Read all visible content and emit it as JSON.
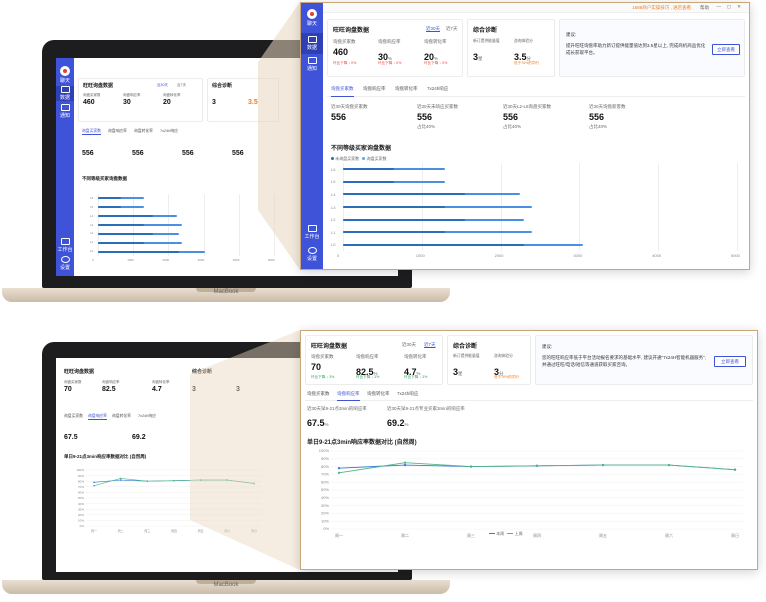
{
  "app": {
    "sidebar": {
      "items": [
        {
          "label": "聊天",
          "icon": "chat-logo-icon"
        },
        {
          "label": "数据",
          "icon": "data-icon"
        },
        {
          "label": "通知",
          "icon": "mail-icon"
        }
      ],
      "bottom": [
        {
          "label": "工作台",
          "icon": "monitor-icon"
        },
        {
          "label": "设置",
          "icon": "settings-icon"
        }
      ]
    },
    "topbar": {
      "text": "1688商户实操技巧 , 进店查看",
      "help": "帮助"
    }
  },
  "top_panel": {
    "card1": {
      "title": "旺旺询盘数据",
      "ranges": [
        "近30天",
        "近7天"
      ],
      "metrics": [
        {
          "label": "询盘买家数",
          "value": "460",
          "delta": "环比下降 ↓ 0%"
        },
        {
          "label": "询盘响应率",
          "value": "30",
          "unit": "%",
          "delta": "环比下降 ↓ 0%"
        },
        {
          "label": "询盘转化率",
          "value": "20",
          "unit": "%",
          "delta": "环比下降 ↓ 0%"
        }
      ]
    },
    "card2": {
      "title": "综合诊断",
      "metrics": [
        {
          "label": "新订提供能量值",
          "value": "3",
          "unit": "星"
        },
        {
          "label": "咨询体验分",
          "value": "3.5",
          "unit": "分",
          "note": "低于76%的同行"
        }
      ]
    },
    "card3": {
      "label": "建议:",
      "text": "提升旺旺询盘率助力新订提供能量值达到3.5星以上, 完成商机商品优化成长获取平台。",
      "button": "立即查看"
    },
    "tabs": [
      "询盘买家数",
      "询盘响应率",
      "询盘转化率",
      "7x24h响应"
    ],
    "stats": [
      {
        "label": "近30天询盘买家数",
        "value": "556",
        "sub": ""
      },
      {
        "label": "近30天未响应买家数",
        "value": "556",
        "sub": "占比40%"
      },
      {
        "label": "近30天L2-L6询盘买家数",
        "value": "556",
        "sub": "占比40%"
      },
      {
        "label": "近30天询盘新客数",
        "value": "556",
        "sub": "占比40%"
      }
    ],
    "chart_title": "不同等级买家询盘数据",
    "legend": [
      "未询盘买家数",
      "询盘买家数"
    ]
  },
  "bottom_panel": {
    "card1": {
      "title": "旺旺询盘数据",
      "ranges": [
        "近30天",
        "近7天"
      ],
      "metrics": [
        {
          "label": "询盘买家数",
          "value": "70",
          "delta": "环比下降 ↓ 3%"
        },
        {
          "label": "询盘响应率",
          "value": "82.5",
          "unit": "%",
          "delta": "环比下降 ↓ 3%"
        },
        {
          "label": "询盘转化率",
          "value": "4.7",
          "unit": "%",
          "delta": "环比下降 ↓ 3%"
        }
      ]
    },
    "card2": {
      "title": "综合诊断",
      "metrics": [
        {
          "label": "新订提供能量值",
          "value": "3",
          "unit": "星"
        },
        {
          "label": "咨询体验分",
          "value": "3",
          "unit": "分",
          "note": "低于76%的同行"
        }
      ]
    },
    "card3": {
      "label": "建议:",
      "text": "您的旺旺响应率低于平台活动报名要求的基础水平, 建议开通\"7x24H智能机器服务\", 并通过旺旺/电话/短信等通道获取买家咨询。",
      "button": "立即查看"
    },
    "tabs": [
      "询盘买家数",
      "询盘响应率",
      "询盘转化率",
      "7x24h响应"
    ],
    "stats": [
      {
        "label": "近30天早9-21点3min的响应率",
        "value": "67.5",
        "unit": "%"
      },
      {
        "label": "近30天早9-21点专业买家3min的响应率",
        "value": "69.2",
        "unit": "%"
      }
    ],
    "chart_title": "单日9-21点3min响应率数据对比 (自然周)",
    "legend": [
      "本周",
      "上周"
    ]
  },
  "laptop": {
    "brand": "MacBook"
  },
  "chart_data": [
    {
      "type": "bar",
      "title": "不同等级买家询盘数据",
      "orientation": "horizontal",
      "categories": [
        "L6",
        "L5",
        "L4",
        "L3",
        "L2",
        "L1",
        "L0"
      ],
      "series": [
        {
          "name": "未询盘买家数",
          "values": [
            1300,
            1300,
            2250,
            2400,
            2300,
            2400,
            3050
          ]
        },
        {
          "name": "询盘买家数",
          "values": [
            650,
            650,
            1550,
            1300,
            1550,
            1300,
            2300
          ]
        }
      ],
      "xlim": [
        0,
        5000
      ],
      "xticks": [
        "0",
        "1000",
        "2000",
        "3000",
        "4000",
        "5000"
      ]
    },
    {
      "type": "line",
      "title": "单日9-21点3min响应率数据对比 (自然周)",
      "categories": [
        "周一",
        "周二",
        "周三",
        "周四",
        "周五",
        "周六",
        "周日"
      ],
      "series": [
        {
          "name": "本周",
          "values": [
            78,
            82,
            80,
            81,
            82,
            82,
            76
          ]
        },
        {
          "name": "上周",
          "values": [
            72,
            85,
            80,
            81,
            82,
            82,
            76
          ]
        }
      ],
      "ylim": [
        0,
        100
      ],
      "yticks": [
        "0%",
        "10%",
        "20%",
        "30%",
        "40%",
        "50%",
        "60%",
        "70%",
        "80%",
        "90%",
        "100%"
      ]
    }
  ]
}
